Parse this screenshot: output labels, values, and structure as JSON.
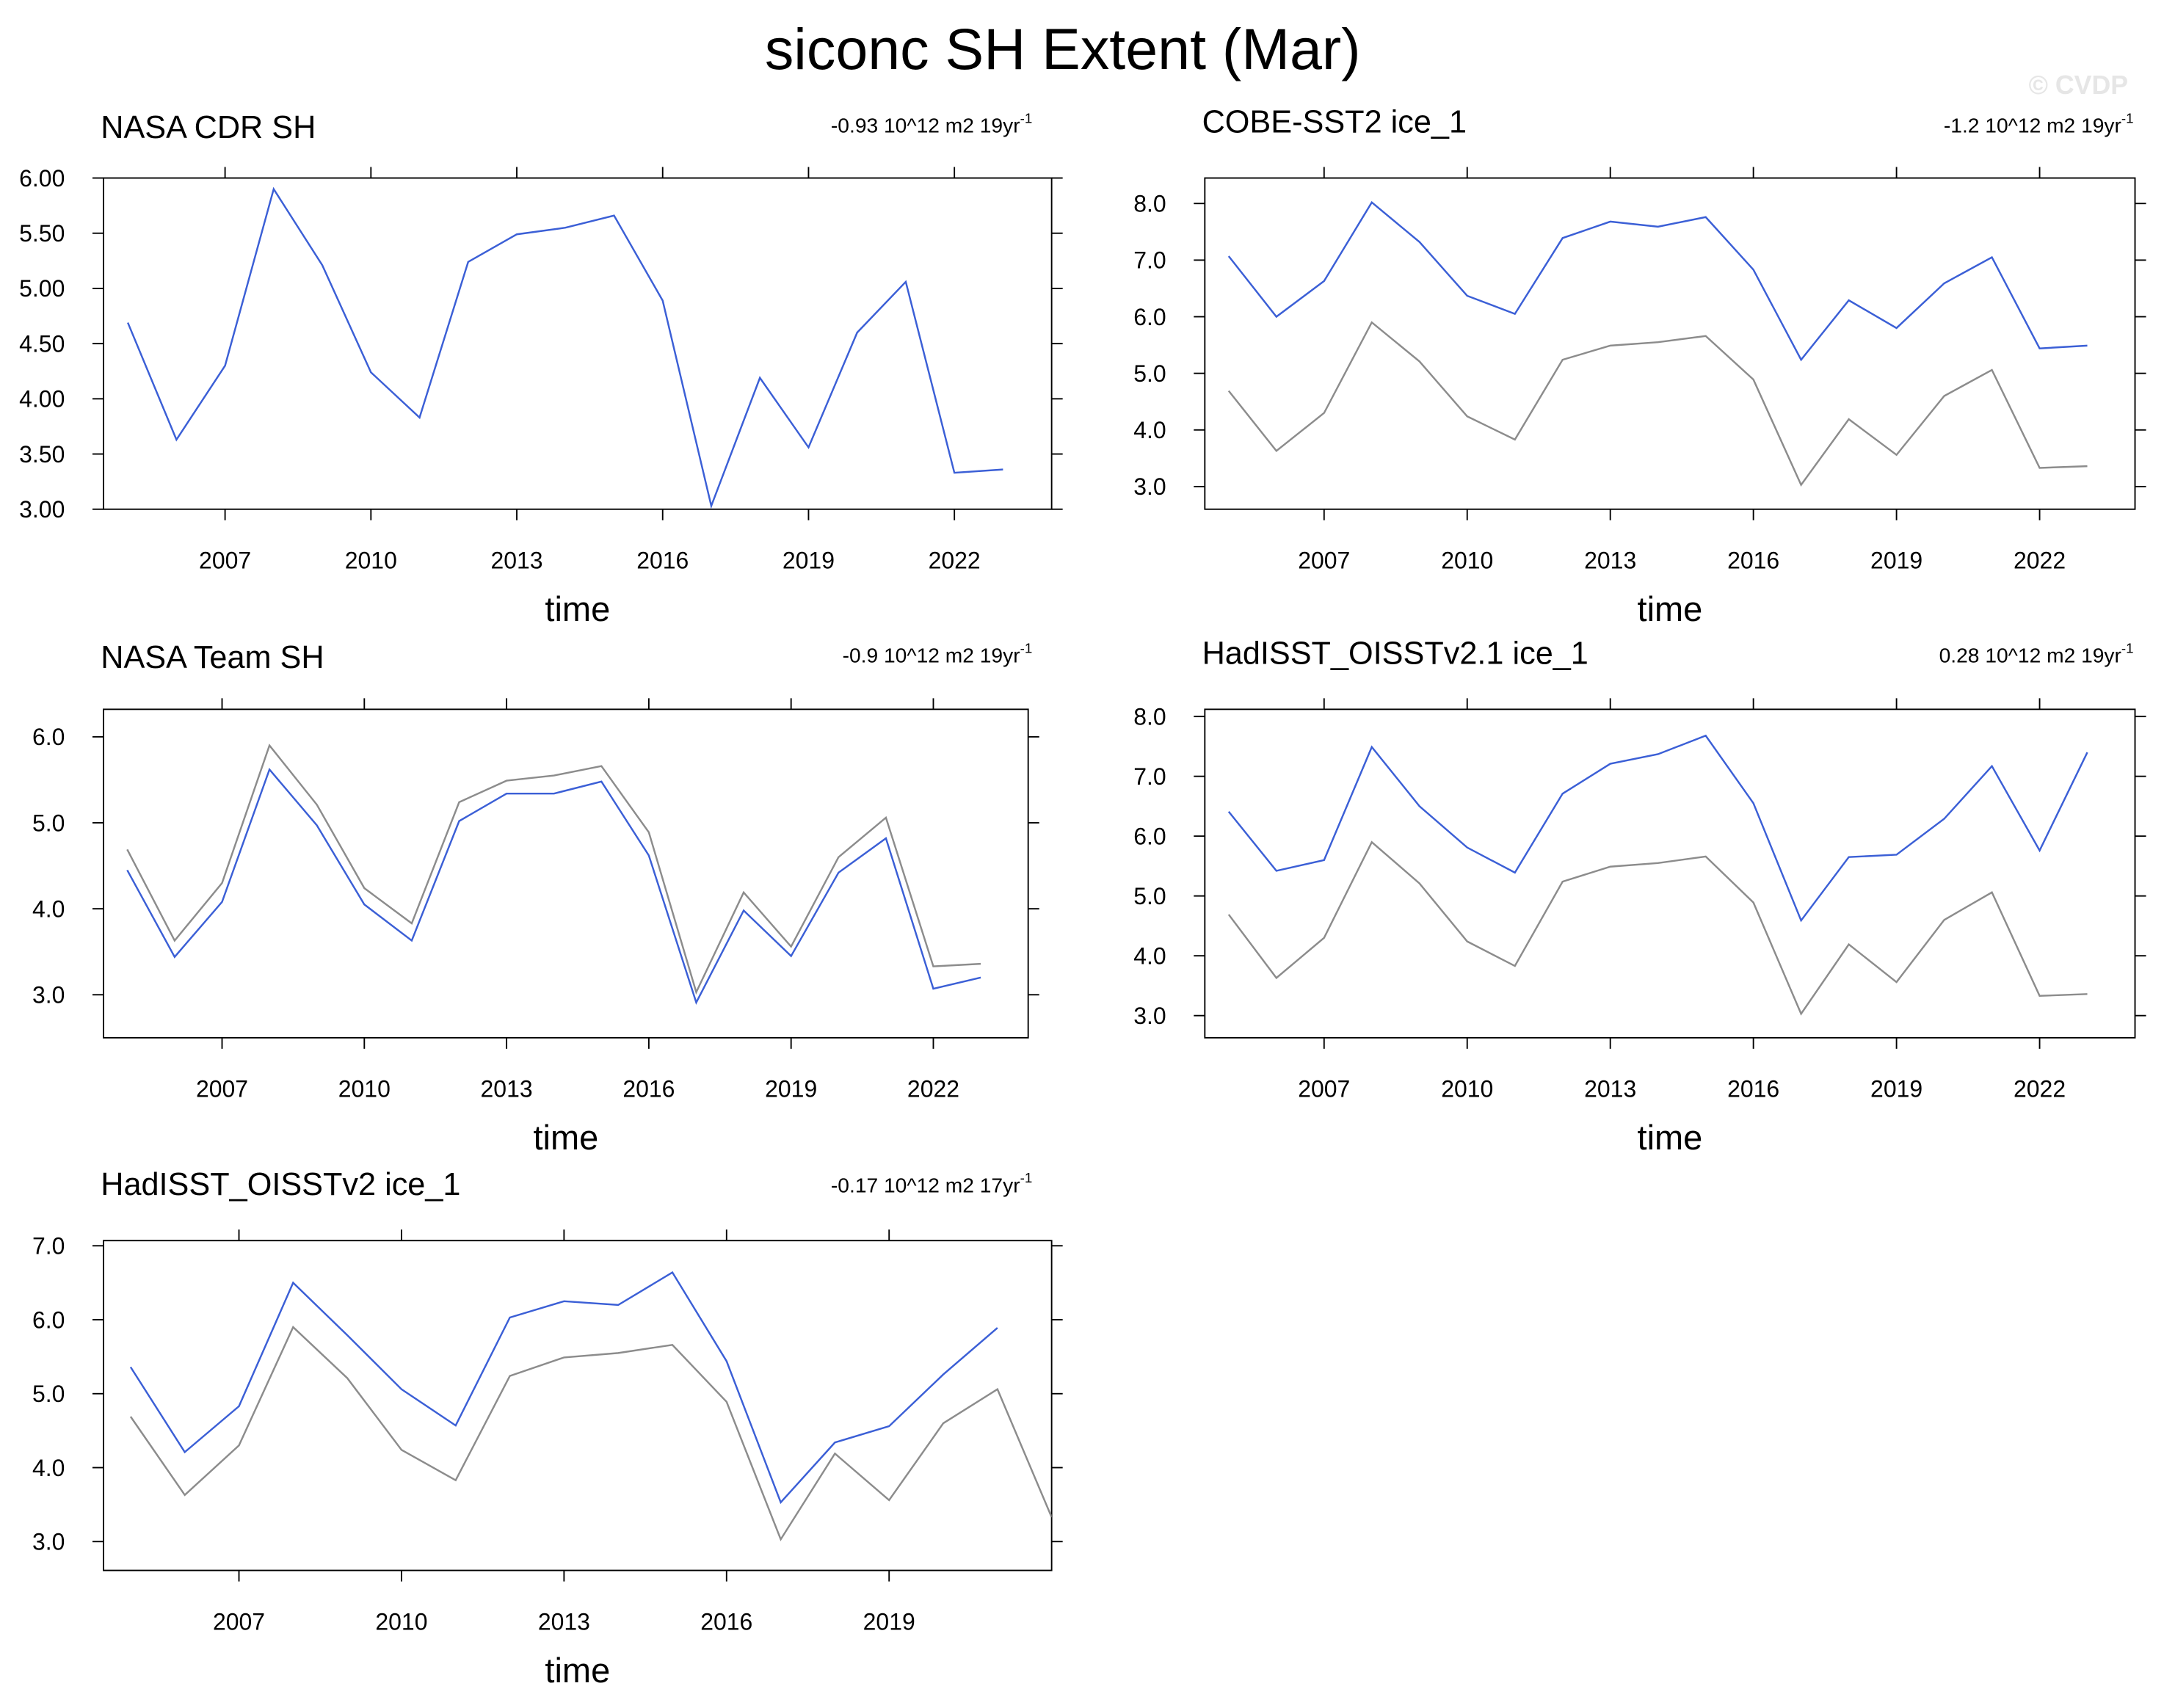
{
  "title": "siconc SH Extent (Mar)",
  "watermark": "© CVDP",
  "chart_data": [
    {
      "type": "line",
      "title": "NASA CDR SH",
      "subtitle": "-0.93 10^12 m2 19yr",
      "subtitle_superscript": "-1",
      "xlabel": "time",
      "x": [
        2005,
        2006,
        2007,
        2008,
        2009,
        2010,
        2011,
        2012,
        2013,
        2014,
        2015,
        2016,
        2017,
        2018,
        2019,
        2020,
        2021,
        2022,
        2023
      ],
      "series": [
        {
          "color": "#3b5fd6",
          "values": [
            4.69,
            3.63,
            4.3,
            5.9,
            5.21,
            4.24,
            3.83,
            5.24,
            5.49,
            5.55,
            5.66,
            4.89,
            3.03,
            4.19,
            3.56,
            4.6,
            5.06,
            3.33,
            3.36
          ]
        }
      ],
      "xlim": [
        2004.5,
        2024
      ],
      "xticks": [
        2007,
        2010,
        2013,
        2016,
        2019,
        2022
      ],
      "ylim": [
        3.0,
        6.0
      ],
      "yticks": [
        {
          "value": 3,
          "label": "3.00"
        },
        {
          "value": 3.5,
          "label": "3.50"
        },
        {
          "value": 4,
          "label": "4.00"
        },
        {
          "value": 4.5,
          "label": "4.50"
        },
        {
          "value": 5,
          "label": "5.00"
        },
        {
          "value": 5.5,
          "label": "5.50"
        },
        {
          "value": 6,
          "label": "6.00"
        }
      ]
    },
    {
      "type": "line",
      "title": "COBE-SST2 ice_1",
      "subtitle": "-1.2 10^12 m2 19yr",
      "subtitle_superscript": "-1",
      "xlabel": "time",
      "x": [
        2005,
        2006,
        2007,
        2008,
        2009,
        2010,
        2011,
        2012,
        2013,
        2014,
        2015,
        2016,
        2017,
        2018,
        2019,
        2020,
        2021,
        2022,
        2023
      ],
      "series": [
        {
          "color": "#8c8c8c",
          "values": [
            4.69,
            3.63,
            4.3,
            5.9,
            5.21,
            4.24,
            3.83,
            5.24,
            5.49,
            5.55,
            5.66,
            4.89,
            3.03,
            4.19,
            3.56,
            4.6,
            5.06,
            3.33,
            3.36
          ]
        },
        {
          "color": "#3b5fd6",
          "values": [
            7.07,
            6.0,
            6.63,
            8.02,
            7.32,
            6.37,
            6.05,
            7.39,
            7.68,
            7.59,
            7.76,
            6.83,
            5.24,
            6.29,
            5.8,
            6.59,
            7.05,
            5.44,
            5.49
          ]
        }
      ],
      "xlim": [
        2004.5,
        2024
      ],
      "xticks": [
        2007,
        2010,
        2013,
        2016,
        2019,
        2022
      ],
      "ylim": [
        2.6,
        8.45
      ],
      "yticks": [
        {
          "value": 3,
          "label": "3.0"
        },
        {
          "value": 4,
          "label": "4.0"
        },
        {
          "value": 5,
          "label": "5.0"
        },
        {
          "value": 6,
          "label": "6.0"
        },
        {
          "value": 7,
          "label": "7.0"
        },
        {
          "value": 8,
          "label": "8.0"
        }
      ]
    },
    {
      "type": "line",
      "title": "NASA Team SH",
      "subtitle": "-0.9 10^12 m2 19yr",
      "subtitle_superscript": "-1",
      "xlabel": "time",
      "x": [
        2005,
        2006,
        2007,
        2008,
        2009,
        2010,
        2011,
        2012,
        2013,
        2014,
        2015,
        2016,
        2017,
        2018,
        2019,
        2020,
        2021,
        2022,
        2023
      ],
      "series": [
        {
          "color": "#8c8c8c",
          "values": [
            4.69,
            3.63,
            4.3,
            5.9,
            5.21,
            4.24,
            3.83,
            5.24,
            5.49,
            5.55,
            5.66,
            4.89,
            3.03,
            4.19,
            3.56,
            4.6,
            5.06,
            3.33,
            3.36
          ]
        },
        {
          "color": "#3b5fd6",
          "values": [
            4.45,
            3.44,
            4.08,
            5.62,
            4.97,
            4.05,
            3.63,
            5.02,
            5.34,
            5.34,
            5.48,
            4.62,
            2.91,
            3.98,
            3.45,
            4.42,
            4.82,
            3.07,
            3.2
          ]
        }
      ],
      "xlim": [
        2004.5,
        2024
      ],
      "xticks": [
        2007,
        2010,
        2013,
        2016,
        2019,
        2022
      ],
      "ylim": [
        2.5,
        6.32
      ],
      "yticks": [
        {
          "value": 3,
          "label": "3.0"
        },
        {
          "value": 4,
          "label": "4.0"
        },
        {
          "value": 5,
          "label": "5.0"
        },
        {
          "value": 6,
          "label": "6.0"
        }
      ]
    },
    {
      "type": "line",
      "title": "HadISST_OISSTv2.1 ice_1",
      "subtitle": "0.28 10^12 m2 19yr",
      "subtitle_superscript": "-1",
      "xlabel": "time",
      "x": [
        2005,
        2006,
        2007,
        2008,
        2009,
        2010,
        2011,
        2012,
        2013,
        2014,
        2015,
        2016,
        2017,
        2018,
        2019,
        2020,
        2021,
        2022,
        2023
      ],
      "series": [
        {
          "color": "#8c8c8c",
          "values": [
            4.69,
            3.63,
            4.3,
            5.9,
            5.21,
            4.24,
            3.83,
            5.24,
            5.49,
            5.55,
            5.66,
            4.89,
            3.03,
            4.19,
            3.56,
            4.6,
            5.06,
            3.33,
            3.36
          ]
        },
        {
          "color": "#3b5fd6",
          "values": [
            6.41,
            5.42,
            5.6,
            7.49,
            6.5,
            5.81,
            5.39,
            6.71,
            7.21,
            7.37,
            7.68,
            6.55,
            4.59,
            5.65,
            5.69,
            6.29,
            7.17,
            5.76,
            7.4
          ]
        }
      ],
      "xlim": [
        2004.5,
        2024
      ],
      "xticks": [
        2007,
        2010,
        2013,
        2016,
        2019,
        2022
      ],
      "ylim": [
        2.63,
        8.12
      ],
      "yticks": [
        {
          "value": 3,
          "label": "3.0"
        },
        {
          "value": 4,
          "label": "4.0"
        },
        {
          "value": 5,
          "label": "5.0"
        },
        {
          "value": 6,
          "label": "6.0"
        },
        {
          "value": 7,
          "label": "7.0"
        },
        {
          "value": 8,
          "label": "8.0"
        }
      ]
    },
    {
      "type": "line",
      "title": "HadISST_OISSTv2 ice_1",
      "subtitle": "-0.17 10^12 m2 17yr",
      "subtitle_superscript": "-1",
      "xlabel": "time",
      "x": [
        2005,
        2006,
        2007,
        2008,
        2009,
        2010,
        2011,
        2012,
        2013,
        2014,
        2015,
        2016,
        2017,
        2018,
        2019,
        2020,
        2021,
        2022
      ],
      "series": [
        {
          "color": "#8c8c8c",
          "values": [
            4.69,
            3.63,
            4.3,
            5.9,
            5.21,
            4.24,
            3.83,
            5.24,
            5.49,
            5.55,
            5.66,
            4.89,
            3.03,
            4.19,
            3.56,
            4.6,
            5.06,
            3.33
          ]
        },
        {
          "color": "#3b5fd6",
          "values": [
            5.36,
            4.21,
            4.83,
            6.5,
            5.79,
            5.06,
            4.57,
            6.03,
            6.25,
            6.2,
            6.64,
            5.44,
            3.53,
            4.34,
            4.56,
            5.26,
            5.89,
            null
          ]
        }
      ],
      "xlim": [
        2004.5,
        2022
      ],
      "xticks": [
        2007,
        2010,
        2013,
        2016,
        2019
      ],
      "ylim": [
        2.61,
        7.07
      ],
      "yticks": [
        {
          "value": 3,
          "label": "3.0"
        },
        {
          "value": 4,
          "label": "4.0"
        },
        {
          "value": 5,
          "label": "5.0"
        },
        {
          "value": 6,
          "label": "6.0"
        },
        {
          "value": 7,
          "label": "7.0"
        }
      ]
    }
  ]
}
